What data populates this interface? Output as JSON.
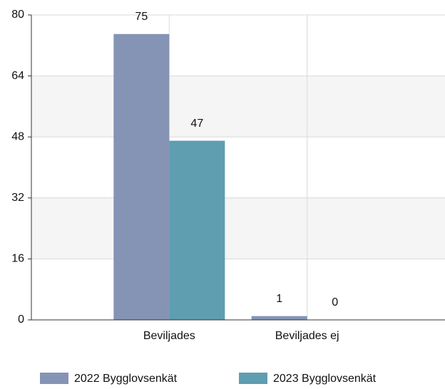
{
  "chart_data": {
    "type": "bar",
    "categories": [
      "Beviljades",
      "Beviljades ej"
    ],
    "series": [
      {
        "name": "2022 Bygglovsenkät",
        "color": "#8594b5",
        "values": [
          75,
          1
        ]
      },
      {
        "name": "2023 Bygglovsenkät",
        "color": "#5f9db1",
        "values": [
          47,
          0
        ]
      }
    ],
    "ylim": [
      0,
      80
    ],
    "yticks": [
      0,
      16,
      32,
      48,
      64,
      80
    ],
    "grid": true,
    "alternate_bands": true,
    "legend": "bottom"
  }
}
